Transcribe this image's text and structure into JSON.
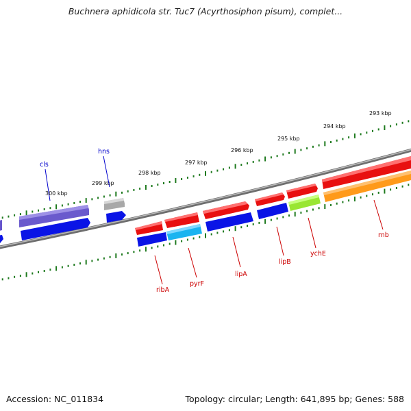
{
  "title": "Buchnera aphidicola str. Tuc7 (Acyrthosiphon pisum), complet...",
  "footer": {
    "accession": "Accession: NC_011834",
    "summary": "Topology: circular; Length: 641,895 bp; Genes: 588"
  },
  "ticks": [
    "300 kbp",
    "299 kbp",
    "298 kbp",
    "297 kbp",
    "296 kbp",
    "295 kbp",
    "294 kbp",
    "293 kbp"
  ],
  "gene_labels": {
    "cls": "cls",
    "hns": "hns",
    "ribA": "ribA",
    "pyrF": "pyrF",
    "lipA": "lipA",
    "lipB": "lipB",
    "ychE": "ychE",
    "rnb": "rnb"
  },
  "colors": {
    "backbone": "#8c8c8c",
    "tick": "#1f7a1f",
    "forward_label": "#0000cc",
    "reverse_label": "#cc0000",
    "purple": "#6655cc",
    "blue": "#0a14e6",
    "grey": "#b4b4b4",
    "red": "#ee1111",
    "cyan": "#18b4f0",
    "lime": "#99e633",
    "orange": "#ff9a1a"
  }
}
